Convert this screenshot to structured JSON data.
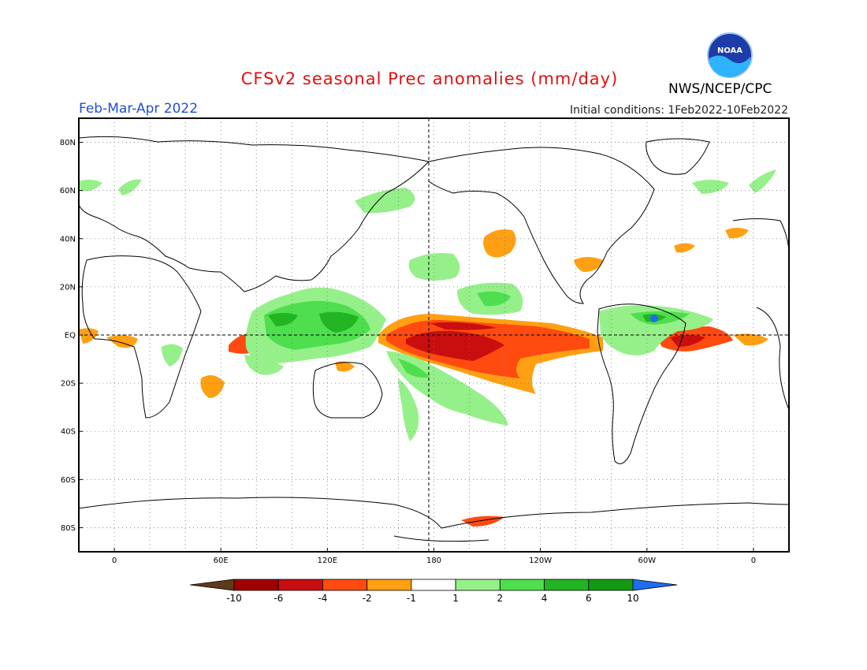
{
  "header": {
    "title": "CFSv2 seasonal Prec anomalies (mm/day)",
    "season": "Feb-Mar-Apr 2022",
    "initial_conditions": "Initial conditions: 1Feb2022-10Feb2022",
    "agency": "NWS/NCEP/CPC",
    "logo_text": "NOAA",
    "logo_icon": "noaa-logo-icon"
  },
  "axes": {
    "lat_labels": [
      "80N",
      "60N",
      "40N",
      "20N",
      "EQ",
      "20S",
      "40S",
      "60S",
      "80S"
    ],
    "lat_values": [
      80,
      60,
      40,
      20,
      0,
      -20,
      -40,
      -60,
      -80
    ],
    "lon_labels": [
      "0",
      "60E",
      "120E",
      "180",
      "120W",
      "60W",
      "0"
    ],
    "lon_values": [
      0,
      60,
      120,
      180,
      240,
      300,
      360
    ],
    "lon_range": [
      -20,
      380
    ],
    "lat_range": [
      -90,
      90
    ],
    "grid": true
  },
  "colorbar": {
    "labels": [
      "-10",
      "-6",
      "-4",
      "-2",
      "-1",
      "1",
      "2",
      "4",
      "6",
      "10"
    ],
    "colors": [
      "#5e3a1c",
      "#a00000",
      "#c80e0e",
      "#ff4a10",
      "#ff9f12",
      "#ffffff",
      "#96f08a",
      "#4ede4e",
      "#22b422",
      "#129a12",
      "#1e6cf0"
    ]
  },
  "anomaly_colors": {
    "wet_light": "#96f08a",
    "wet_mid": "#4ede4e",
    "wet_strong": "#22b422",
    "dry_light": "#ff9f12",
    "dry_mid": "#ff4a10",
    "dry_strong": "#c80e0e",
    "wet_extreme": "#1e6cf0"
  }
}
